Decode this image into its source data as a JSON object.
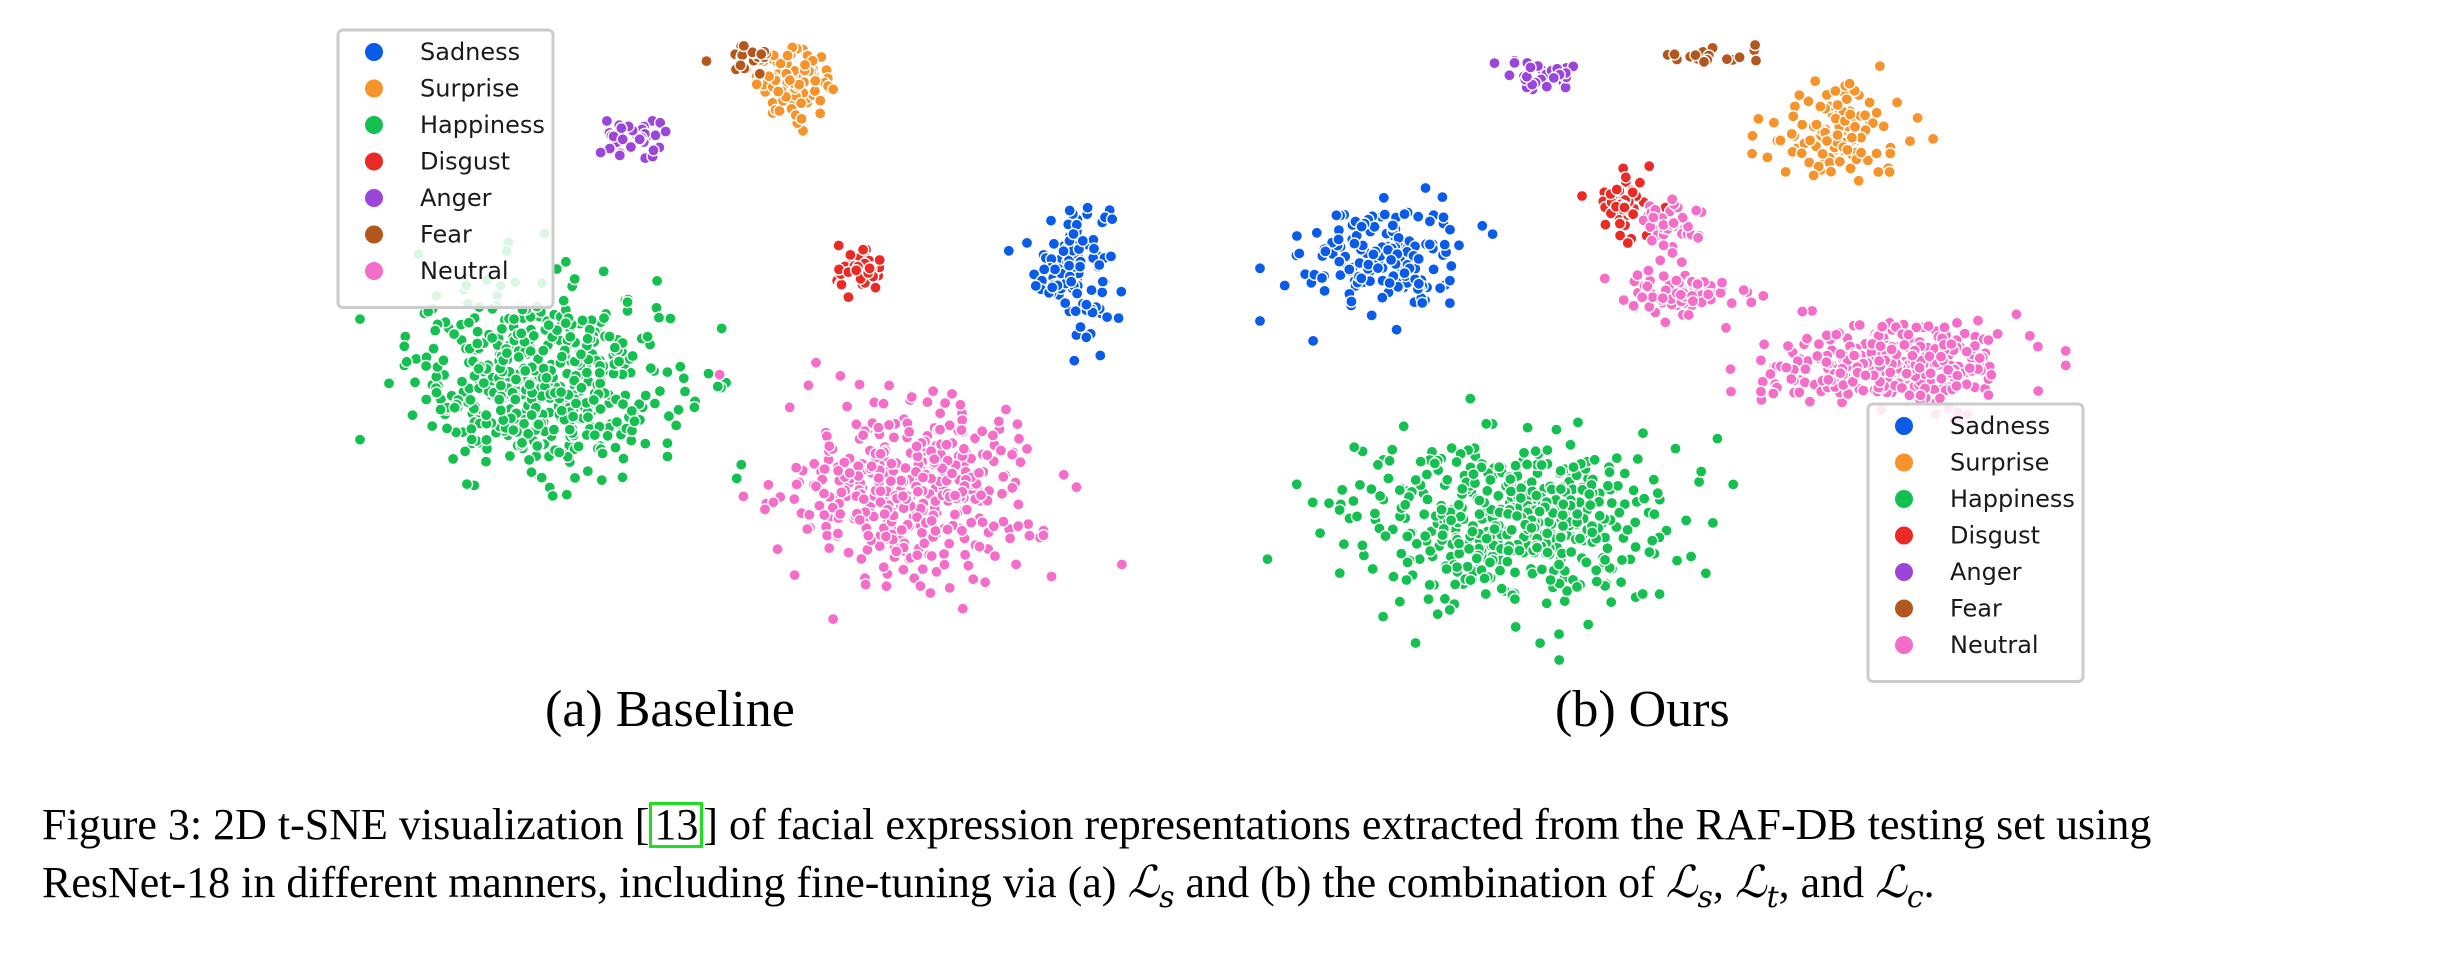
{
  "chart_data": [
    {
      "type": "scatter",
      "title": "",
      "subcaption": "(a) Baseline",
      "legend_position": "top-left",
      "grid": false,
      "axes_visible": false,
      "series": [
        {
          "name": "Sadness",
          "color": "#0a5be8",
          "clusters": [
            {
              "cx": 0.74,
              "cy": 0.28,
              "rx": 0.09,
              "ry": 0.22,
              "n": 110
            }
          ]
        },
        {
          "name": "Surprise",
          "color": "#f6932a",
          "clusters": [
            {
              "cx": 0.06,
              "cy": 0.86,
              "rx": 0.09,
              "ry": 0.1,
              "n": 100
            }
          ]
        },
        {
          "name": "Happiness",
          "color": "#14c050",
          "clusters": [
            {
              "cx": -0.55,
              "cy": -0.1,
              "rx": 0.32,
              "ry": 0.3,
              "n": 520
            }
          ]
        },
        {
          "name": "Disgust",
          "color": "#ea2a25",
          "clusters": [
            {
              "cx": 0.22,
              "cy": 0.25,
              "rx": 0.06,
              "ry": 0.08,
              "n": 45
            }
          ]
        },
        {
          "name": "Anger",
          "color": "#9b45d9",
          "clusters": [
            {
              "cx": -0.33,
              "cy": 0.68,
              "rx": 0.08,
              "ry": 0.07,
              "n": 35
            }
          ]
        },
        {
          "name": "Fear",
          "color": "#b3571e",
          "clusters": [
            {
              "cx": -0.06,
              "cy": 0.94,
              "rx": 0.06,
              "ry": 0.05,
              "n": 20
            }
          ]
        },
        {
          "name": "Neutral",
          "color": "#f46dc9",
          "clusters": [
            {
              "cx": 0.35,
              "cy": -0.45,
              "rx": 0.3,
              "ry": 0.28,
              "n": 420
            }
          ]
        }
      ]
    },
    {
      "type": "scatter",
      "title": "",
      "subcaption": "(b) Ours",
      "legend_position": "bottom-right",
      "grid": false,
      "axes_visible": false,
      "series": [
        {
          "name": "Sadness",
          "color": "#0a5be8",
          "clusters": [
            {
              "cx": -0.7,
              "cy": 0.3,
              "rx": 0.19,
              "ry": 0.18,
              "n": 170
            }
          ]
        },
        {
          "name": "Surprise",
          "color": "#f6932a",
          "clusters": [
            {
              "cx": 0.4,
              "cy": 0.7,
              "rx": 0.18,
              "ry": 0.16,
              "n": 120
            }
          ]
        },
        {
          "name": "Happiness",
          "color": "#14c050",
          "clusters": [
            {
              "cx": -0.4,
              "cy": -0.55,
              "rx": 0.38,
              "ry": 0.25,
              "n": 520
            }
          ]
        },
        {
          "name": "Disgust",
          "color": "#ea2a25",
          "clusters": [
            {
              "cx": -0.1,
              "cy": 0.45,
              "rx": 0.07,
              "ry": 0.1,
              "n": 50
            }
          ]
        },
        {
          "name": "Anger",
          "color": "#9b45d9",
          "clusters": [
            {
              "cx": -0.32,
              "cy": 0.88,
              "rx": 0.09,
              "ry": 0.06,
              "n": 40
            }
          ]
        },
        {
          "name": "Fear",
          "color": "#b3571e",
          "clusters": [
            {
              "cx": 0.1,
              "cy": 0.95,
              "rx": 0.14,
              "ry": 0.03,
              "n": 20
            }
          ]
        },
        {
          "name": "Neutral",
          "color": "#f46dc9",
          "clusters": [
            {
              "cx": 0.55,
              "cy": -0.05,
              "rx": 0.3,
              "ry": 0.13,
              "n": 330
            },
            {
              "cx": 0.02,
              "cy": 0.18,
              "rx": 0.16,
              "ry": 0.07,
              "n": 80
            },
            {
              "cx": 0.0,
              "cy": 0.4,
              "rx": 0.07,
              "ry": 0.09,
              "n": 40
            }
          ]
        }
      ]
    }
  ],
  "caption": {
    "line1_prefix": "Figure 3: 2D t-SNE visualization [",
    "citation": "13",
    "line1_suffix": "] of facial expression representations extracted from the RAF-DB testing set using",
    "line2_prefix": "ResNet-18 in different manners, including fine-tuning via (a) ",
    "loss_symbol": "ℒ",
    "sub_s": "s",
    "sub_t": "t",
    "sub_c": "c",
    "line2_mid": " and (b) the combination of ",
    "comma": ", ",
    "and_word": ", and ",
    "period": "."
  }
}
